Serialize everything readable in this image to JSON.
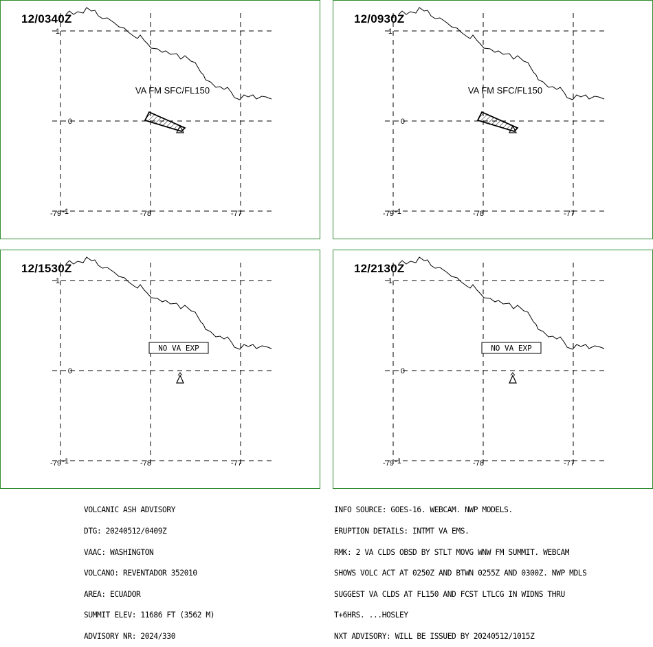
{
  "panels": [
    {
      "time": "12/0340Z",
      "label": "VA FM SFC/FL150",
      "has_ash": true
    },
    {
      "time": "12/0930Z",
      "label": "VA FM SFC/FL150",
      "has_ash": true
    },
    {
      "time": "12/1530Z",
      "label": "NO VA EXP",
      "has_ash": false
    },
    {
      "time": "12/2130Z",
      "label": "NO VA EXP",
      "has_ash": false
    }
  ],
  "axes": {
    "lat_labels": [
      "1",
      "0",
      "-1"
    ],
    "lon_labels": [
      "-79",
      "-78",
      "-77"
    ]
  },
  "advisory_left": [
    "VOLCANIC ASH ADVISORY",
    "DTG: 20240512/0409Z",
    "VAAC: WASHINGTON",
    "VOLCANO: REVENTADOR 352010",
    "AREA: ECUADOR",
    "SUMMIT ELEV: 11686 FT (3562 M)",
    "ADVISORY NR: 2024/330"
  ],
  "advisory_right": [
    "INFO SOURCE: GOES-16. WEBCAM. NWP MODELS.",
    "ERUPTION DETAILS: INTMT VA EMS.",
    "RMK: 2 VA CLDS OBSD BY STLT MOVG WNW FM SUMMIT. WEBCAM",
    "SHOWS VOLC ACT AT 0250Z AND BTWN 0255Z AND 0300Z. NWP MDLS",
    "SUGGEST VA CLDS AT FL150 AND FCST LTLCG IN WIDNS THRU",
    "T+6HRS. ...HOSLEY",
    "NXT ADVISORY: WILL BE ISSUED BY 20240512/1015Z"
  ],
  "colors": {
    "panel_border": "#2e8b2e",
    "grid": "#000000",
    "coast": "#000000"
  },
  "icons": {
    "volcano": "volcano-triangle-icon",
    "ash_cloud": "hatched-polygon"
  }
}
